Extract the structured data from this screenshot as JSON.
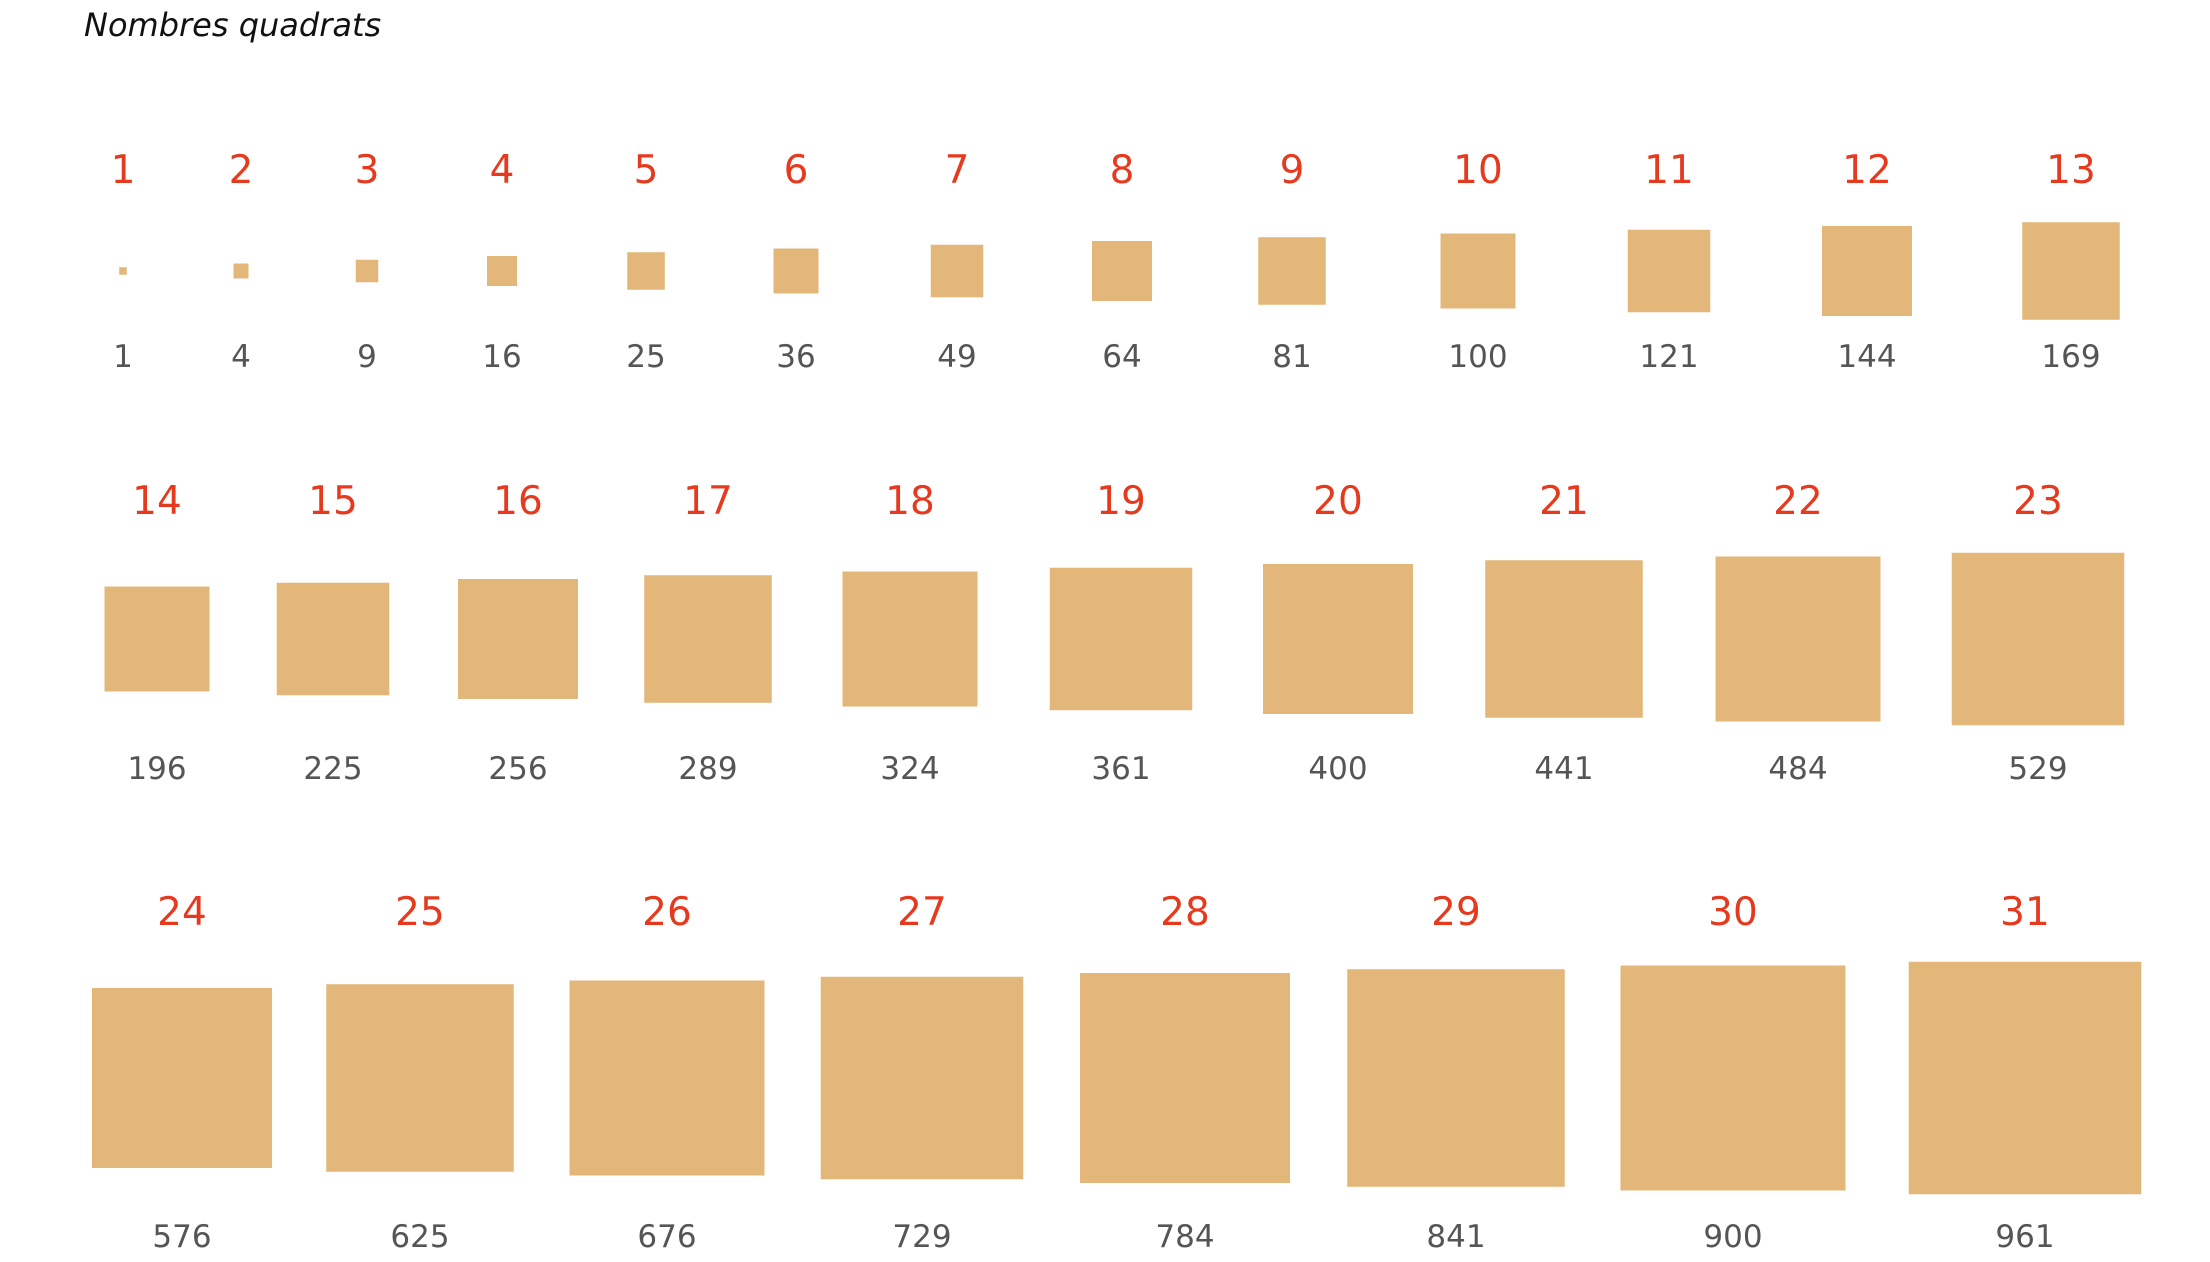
{
  "title": "Nombres quadrats",
  "colors": {
    "square": "#e2b779",
    "number": "#e63a1f",
    "squareLabel": "#555555"
  },
  "rows": [
    {
      "items": [
        {
          "n": "1",
          "sq": "1"
        },
        {
          "n": "2",
          "sq": "4"
        },
        {
          "n": "3",
          "sq": "9"
        },
        {
          "n": "4",
          "sq": "16"
        },
        {
          "n": "5",
          "sq": "25"
        },
        {
          "n": "6",
          "sq": "36"
        },
        {
          "n": "7",
          "sq": "49"
        },
        {
          "n": "8",
          "sq": "64"
        },
        {
          "n": "9",
          "sq": "81"
        },
        {
          "n": "10",
          "sq": "100"
        },
        {
          "n": "11",
          "sq": "121"
        },
        {
          "n": "12",
          "sq": "144"
        },
        {
          "n": "13",
          "sq": "169"
        }
      ]
    },
    {
      "items": [
        {
          "n": "14",
          "sq": "196"
        },
        {
          "n": "15",
          "sq": "225"
        },
        {
          "n": "16",
          "sq": "256"
        },
        {
          "n": "17",
          "sq": "289"
        },
        {
          "n": "18",
          "sq": "324"
        },
        {
          "n": "19",
          "sq": "361"
        },
        {
          "n": "20",
          "sq": "400"
        },
        {
          "n": "21",
          "sq": "441"
        },
        {
          "n": "22",
          "sq": "484"
        },
        {
          "n": "23",
          "sq": "529"
        }
      ]
    },
    {
      "items": [
        {
          "n": "24",
          "sq": "576"
        },
        {
          "n": "25",
          "sq": "625"
        },
        {
          "n": "26",
          "sq": "676"
        },
        {
          "n": "27",
          "sq": "729"
        },
        {
          "n": "28",
          "sq": "784"
        },
        {
          "n": "29",
          "sq": "841"
        },
        {
          "n": "30",
          "sq": "900"
        },
        {
          "n": "31",
          "sq": "961"
        }
      ]
    }
  ]
}
